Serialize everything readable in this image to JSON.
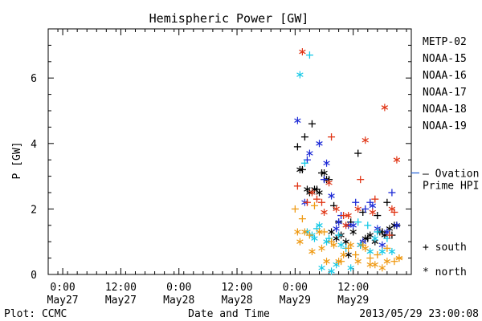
{
  "chart_data": {
    "type": "scatter",
    "title": "Hemispheric Power [GW]",
    "ylabel": "P [GW]",
    "xlabel": "Date and Time",
    "footer_left": "Plot: CCMC",
    "footer_right": "2013/05/29 23:00:08",
    "x_range_hours": [
      -51,
      24
    ],
    "ylim": [
      0,
      7.5
    ],
    "y_ticks": [
      {
        "value": 0,
        "label": "0"
      },
      {
        "value": 2,
        "label": "2"
      },
      {
        "value": 4,
        "label": "4"
      },
      {
        "value": 6,
        "label": "6"
      }
    ],
    "x_ticks": [
      {
        "hour": -48,
        "time": "0:00",
        "date": "May27"
      },
      {
        "hour": -36,
        "time": "12:00",
        "date": "May27"
      },
      {
        "hour": -24,
        "time": "0:00",
        "date": "May28"
      },
      {
        "hour": -12,
        "time": "12:00",
        "date": "May28"
      },
      {
        "hour": 0,
        "time": "0:00",
        "date": "May29"
      },
      {
        "hour": 12,
        "time": "12:00",
        "date": "May29"
      }
    ],
    "ovation": {
      "value": 3.1,
      "label_line1": "– Ovation",
      "label_line2": "Prime HPI",
      "color": "#1f5fd6"
    },
    "marker_legend": [
      {
        "symbol": "+",
        "label": "south"
      },
      {
        "symbol": "*",
        "label": "north"
      }
    ],
    "series": [
      {
        "name": "METP-02",
        "color": "#000000",
        "south": [
          [
            0.5,
            3.9
          ],
          [
            1.5,
            3.2
          ],
          [
            2,
            4.2
          ],
          [
            3.5,
            4.6
          ],
          [
            4.5,
            2.6
          ],
          [
            5.5,
            3.1
          ],
          [
            7,
            2.9
          ],
          [
            8,
            2.1
          ],
          [
            9,
            1.6
          ],
          [
            11.5,
            1.6
          ],
          [
            13,
            3.7
          ],
          [
            14,
            1.9
          ],
          [
            15,
            1.1
          ],
          [
            17,
            1.8
          ],
          [
            18,
            1.3
          ],
          [
            19,
            2.2
          ],
          [
            20,
            1.2
          ],
          [
            21,
            1.5
          ]
        ],
        "north": [
          [
            1,
            3.2
          ],
          [
            2.5,
            2.6
          ],
          [
            3,
            2.5
          ],
          [
            4,
            2.6
          ],
          [
            5,
            2.5
          ],
          [
            6,
            3.1
          ],
          [
            6.5,
            2.9
          ],
          [
            7.5,
            1.3
          ],
          [
            8.5,
            1.1
          ],
          [
            9.5,
            1.2
          ],
          [
            10.5,
            1.0
          ],
          [
            11,
            0.6
          ],
          [
            12,
            1.3
          ],
          [
            13.5,
            0.9
          ],
          [
            14.5,
            1.1
          ],
          [
            15.5,
            1.2
          ],
          [
            16.5,
            1.0
          ],
          [
            17.5,
            1.3
          ],
          [
            18.5,
            1.2
          ],
          [
            19.5,
            1.4
          ],
          [
            20.5,
            1.5
          ]
        ]
      },
      {
        "name": "NOAA-15",
        "color": "#1c2ad6",
        "south": [
          [
            2.5,
            3.5
          ],
          [
            6,
            2.9
          ],
          [
            9.5,
            1.8
          ],
          [
            12.5,
            2.2
          ],
          [
            14.5,
            2.0
          ],
          [
            15.5,
            2.2
          ],
          [
            20,
            2.5
          ]
        ],
        "north": [
          [
            0.5,
            4.7
          ],
          [
            2,
            2.2
          ],
          [
            3,
            3.7
          ],
          [
            5,
            4.0
          ],
          [
            6.5,
            3.4
          ],
          [
            7.5,
            2.4
          ],
          [
            8.5,
            1.4
          ],
          [
            9,
            1.6
          ],
          [
            11,
            1.5
          ],
          [
            12,
            1.5
          ],
          [
            14,
            1.0
          ],
          [
            16,
            2.1
          ],
          [
            17,
            1.4
          ],
          [
            18,
            0.9
          ],
          [
            19,
            1.3
          ],
          [
            21,
            1.5
          ]
        ]
      },
      {
        "name": "NOAA-16",
        "color": "#14c8e6",
        "south": [
          [
            2,
            3.4
          ],
          [
            3,
            6.7
          ],
          [
            4.5,
            1.4
          ],
          [
            7,
            1.1
          ],
          [
            9,
            1.2
          ],
          [
            10.5,
            0.8
          ],
          [
            13,
            1.6
          ],
          [
            15,
            1.5
          ],
          [
            17,
            1.3
          ],
          [
            19,
            1.1
          ]
        ],
        "north": [
          [
            1,
            6.1
          ],
          [
            2.5,
            1.3
          ],
          [
            3.5,
            1.2
          ],
          [
            4,
            1.1
          ],
          [
            5,
            1.5
          ],
          [
            5.5,
            0.2
          ],
          [
            6.5,
            1.0
          ],
          [
            7.5,
            0.1
          ],
          [
            8.5,
            0.3
          ],
          [
            9.5,
            0.9
          ],
          [
            11.5,
            0.2
          ],
          [
            13.5,
            0.9
          ],
          [
            15.5,
            0.7
          ],
          [
            16.5,
            1.1
          ],
          [
            18,
            0.7
          ],
          [
            20,
            0.7
          ]
        ]
      },
      {
        "name": "NOAA-17",
        "color": "#32e67a",
        "south": [],
        "north": []
      },
      {
        "name": "NOAA-18",
        "color": "#ef9a14",
        "south": [
          [
            0,
            2.0
          ],
          [
            1.5,
            1.7
          ],
          [
            3,
            1.2
          ],
          [
            4,
            2.1
          ],
          [
            6,
            1.3
          ],
          [
            7.5,
            1.0
          ],
          [
            9.5,
            0.4
          ],
          [
            11,
            0.8
          ],
          [
            12.5,
            0.6
          ],
          [
            14,
            0.9
          ],
          [
            15.5,
            0.5
          ],
          [
            17,
            0.6
          ],
          [
            19,
            0.8
          ],
          [
            20.5,
            0.4
          ],
          [
            21.5,
            0.5
          ]
        ],
        "north": [
          [
            0.5,
            1.3
          ],
          [
            1,
            1.0
          ],
          [
            2,
            1.3
          ],
          [
            3.5,
            0.7
          ],
          [
            5,
            1.3
          ],
          [
            5.5,
            0.8
          ],
          [
            6.5,
            0.4
          ],
          [
            8,
            0.9
          ],
          [
            9,
            0.4
          ],
          [
            10,
            0.6
          ],
          [
            11.5,
            0.9
          ],
          [
            13,
            0.4
          ],
          [
            14.5,
            0.8
          ],
          [
            15.5,
            0.3
          ],
          [
            16.5,
            0.3
          ],
          [
            18,
            0.2
          ],
          [
            19,
            0.4
          ],
          [
            21.5,
            0.5
          ]
        ]
      },
      {
        "name": "NOAA-19",
        "color": "#e03414",
        "south": [
          [
            0.5,
            2.7
          ],
          [
            2.5,
            2.2
          ],
          [
            4.5,
            2.3
          ],
          [
            5.5,
            2.2
          ],
          [
            7.5,
            4.2
          ],
          [
            10,
            1.8
          ],
          [
            13.5,
            2.9
          ],
          [
            16.5,
            2.3
          ],
          [
            19.5,
            1.2
          ],
          [
            20.5,
            1.9
          ]
        ],
        "north": [
          [
            1.5,
            6.8
          ],
          [
            3.5,
            2.5
          ],
          [
            6,
            1.9
          ],
          [
            7,
            2.8
          ],
          [
            8.5,
            2.0
          ],
          [
            10.5,
            1.5
          ],
          [
            11,
            1.8
          ],
          [
            13,
            2.0
          ],
          [
            14.5,
            4.1
          ],
          [
            16,
            1.9
          ],
          [
            18.5,
            5.1
          ],
          [
            20,
            2.0
          ],
          [
            21,
            3.5
          ]
        ]
      }
    ]
  }
}
